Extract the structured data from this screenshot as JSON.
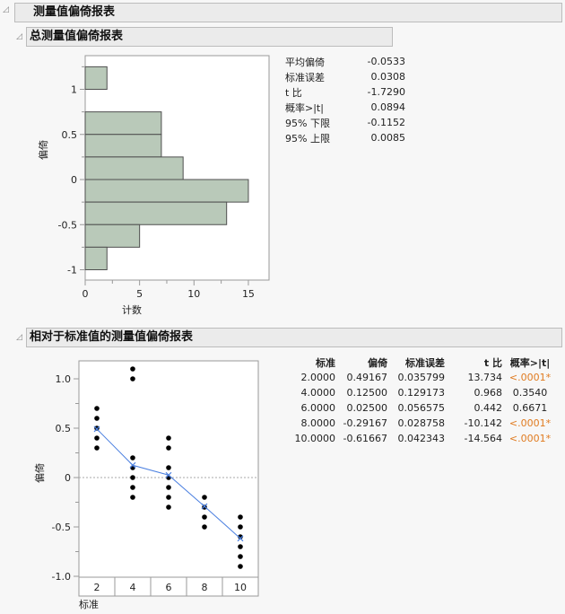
{
  "report": {
    "title": "测量值偏倚报表",
    "sections": [
      {
        "title": "总测量值偏倚报表"
      },
      {
        "title": "相对于标准值的测量值偏倚报表"
      }
    ]
  },
  "overall_stats": [
    {
      "label": "平均偏倚",
      "value": "-0.0533"
    },
    {
      "label": "标准误差",
      "value": "0.0308"
    },
    {
      "label": "t 比",
      "value": "-1.7290"
    },
    {
      "label": "概率>|t|",
      "value": "0.0894"
    },
    {
      "label": "95% 下限",
      "value": "-0.1152"
    },
    {
      "label": "95% 上限",
      "value": "0.0085"
    }
  ],
  "by_standard_table": {
    "headers": [
      "标准",
      "偏倚",
      "标准误差",
      "t 比",
      "概率>|t|"
    ],
    "rows": [
      {
        "std": "2.0000",
        "bias": "0.49167",
        "se": "0.035799",
        "t": "13.734",
        "p": "<.0001*",
        "sig": true
      },
      {
        "std": "4.0000",
        "bias": "0.12500",
        "se": "0.129173",
        "t": "0.968",
        "p": "0.3540",
        "sig": false
      },
      {
        "std": "6.0000",
        "bias": "0.02500",
        "se": "0.056575",
        "t": "0.442",
        "p": "0.6671",
        "sig": false
      },
      {
        "std": "8.0000",
        "bias": "-0.29167",
        "se": "0.028758",
        "t": "-10.142",
        "p": "<.0001*",
        "sig": true
      },
      {
        "std": "10.0000",
        "bias": "-0.61667",
        "se": "0.042343",
        "t": "-14.564",
        "p": "<.0001*",
        "sig": true
      }
    ]
  },
  "colors": {
    "bar_fill": "#b9c9b9",
    "bar_stroke": "#4f4f4f",
    "line": "#4a7fe0",
    "significant": "#e07b20"
  },
  "chart_data": [
    {
      "type": "bar",
      "orientation": "horizontal",
      "title": "总测量值偏倚报表",
      "xlabel": "计数",
      "ylabel": "偏倚",
      "bins": [
        {
          "from": 1.0,
          "to": 1.25,
          "count": 2
        },
        {
          "from": 0.5,
          "to": 0.75,
          "count": 7
        },
        {
          "from": 0.25,
          "to": 0.5,
          "count": 7
        },
        {
          "from": 0.0,
          "to": 0.25,
          "count": 9
        },
        {
          "from": -0.25,
          "to": 0.0,
          "count": 15
        },
        {
          "from": -0.5,
          "to": -0.25,
          "count": 13
        },
        {
          "from": -0.75,
          "to": -0.5,
          "count": 5
        },
        {
          "from": -1.0,
          "to": -0.75,
          "count": 2
        }
      ],
      "xticks": [
        "0",
        "5",
        "10",
        "15"
      ],
      "yticks": [
        "1",
        "0.5",
        "0",
        "-0.5",
        "-1"
      ],
      "xlim": [
        0,
        17
      ],
      "ylim": [
        -1.1,
        1.35
      ]
    },
    {
      "type": "scatter",
      "title": "相对于标准值的测量值偏倚报表",
      "xlabel": "标准",
      "ylabel": "偏倚",
      "categories": [
        "2",
        "4",
        "6",
        "8",
        "10"
      ],
      "points": {
        "2": [
          0.7,
          0.6,
          0.5,
          0.4,
          0.3
        ],
        "4": [
          1.1,
          1.0,
          0.2,
          0.1,
          0.0,
          -0.1,
          -0.2
        ],
        "6": [
          0.4,
          0.3,
          0.1,
          0.0,
          -0.1,
          -0.2,
          -0.3
        ],
        "8": [
          -0.2,
          -0.3,
          -0.4,
          -0.5
        ],
        "10": [
          -0.4,
          -0.5,
          -0.6,
          -0.7,
          -0.8,
          -0.9
        ]
      },
      "series": [
        {
          "name": "平均偏倚",
          "values": [
            0.49167,
            0.125,
            0.025,
            -0.29167,
            -0.61667
          ]
        }
      ],
      "yticks": [
        "1.0",
        "0.5",
        "0",
        "-0.5",
        "-1.0"
      ],
      "ylim": [
        -1.0,
        1.18
      ],
      "reference_line": 0
    }
  ]
}
